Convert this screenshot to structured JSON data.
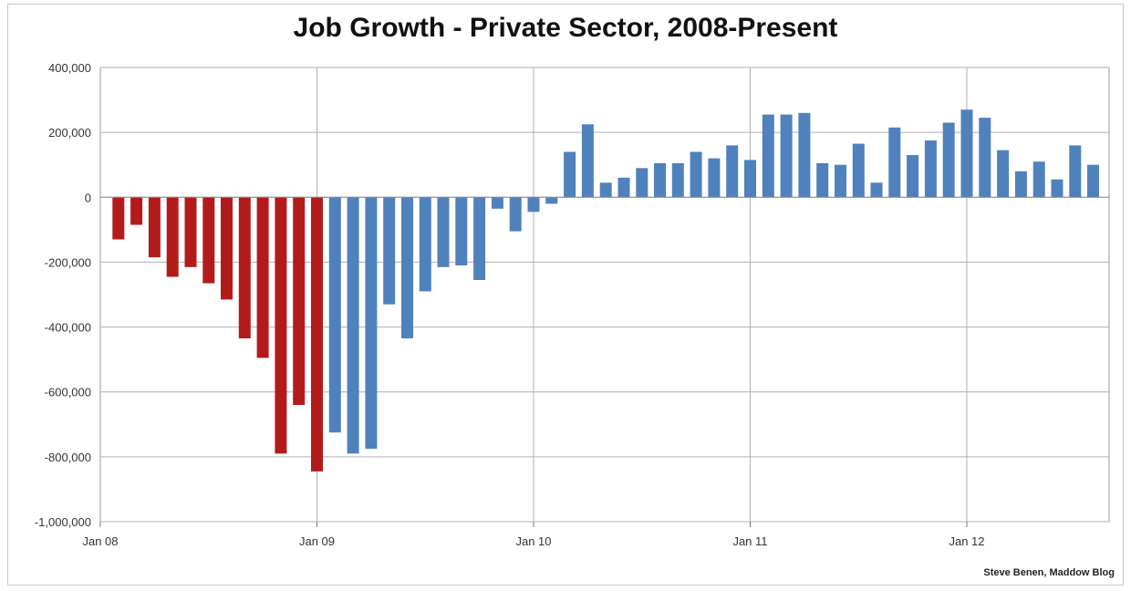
{
  "chart_data": {
    "type": "bar",
    "title": "Job Growth - Private Sector, 2008-Present",
    "xlabel": "",
    "ylabel": "",
    "ylim": [
      -1000000,
      400000
    ],
    "yticks": [
      400000,
      200000,
      0,
      -200000,
      -400000,
      -600000,
      -800000,
      -1000000
    ],
    "ytick_labels": [
      "400,000",
      "200,000",
      "0",
      "-200,000",
      "-400,000",
      "-600,000",
      "-800,000",
      "-1,000,000"
    ],
    "xtick_labels": [
      "Jan 08",
      "Jan 09",
      "Jan 10",
      "Jan 11",
      "Jan 12"
    ],
    "grid": true,
    "series_colors": {
      "before_jan09": "#b31b1b",
      "from_jan09": "#4f81bd"
    },
    "values": [
      -130000,
      -85000,
      -185000,
      -245000,
      -215000,
      -265000,
      -315000,
      -435000,
      -495000,
      -790000,
      -640000,
      -845000,
      -725000,
      -790000,
      -775000,
      -330000,
      -435000,
      -290000,
      -215000,
      -210000,
      -255000,
      -35000,
      -105000,
      -45000,
      -20000,
      140000,
      225000,
      45000,
      60000,
      90000,
      105000,
      105000,
      140000,
      120000,
      160000,
      115000,
      255000,
      255000,
      260000,
      105000,
      100000,
      165000,
      45000,
      215000,
      130000,
      175000,
      230000,
      270000,
      245000,
      145000,
      80000,
      110000,
      55000,
      160000,
      100000
    ]
  },
  "credit": "Steve Benen, Maddow Blog"
}
